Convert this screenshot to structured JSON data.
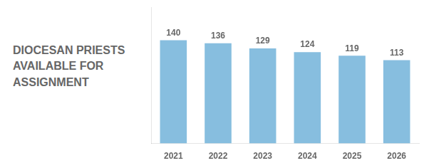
{
  "chart_data": {
    "type": "bar",
    "title": "DIOCESAN PRIESTS\nAVAILABLE FOR\nASSIGNMENT",
    "categories": [
      "2021",
      "2022",
      "2023",
      "2024",
      "2025",
      "2026"
    ],
    "values": [
      140,
      136,
      129,
      124,
      119,
      113
    ],
    "color": "#87BEDF",
    "ylim": [
      0,
      185
    ],
    "grid": false,
    "data_labels": true,
    "tick_labels": "x"
  }
}
